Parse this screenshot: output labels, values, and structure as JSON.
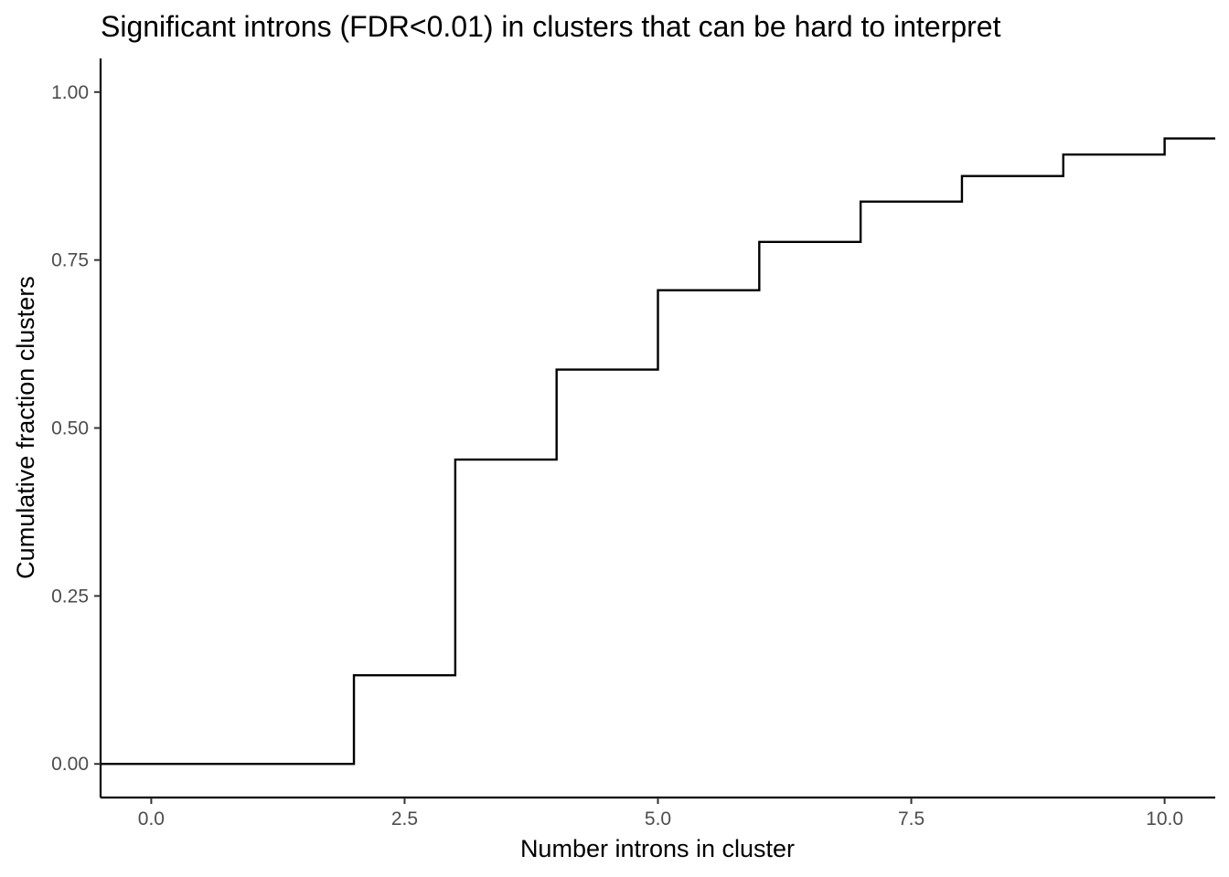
{
  "chart_data": {
    "type": "line",
    "subtype": "step-ecdf",
    "title": "Significant introns (FDR<0.01) in clusters that can be hard to interpret",
    "xlabel": "Number introns in cluster",
    "ylabel": "Cumulative fraction clusters",
    "xlim": [
      -0.5,
      10.5
    ],
    "ylim": [
      -0.05,
      1.05
    ],
    "x_ticks": [
      0,
      2.5,
      5,
      7.5,
      10
    ],
    "x_tick_labels": [
      "0.0",
      "2.5",
      "5.0",
      "7.5",
      "10.0"
    ],
    "y_ticks": [
      0,
      0.25,
      0.5,
      0.75,
      1
    ],
    "y_tick_labels": [
      "0.00",
      "0.25",
      "0.50",
      "0.75",
      "1.00"
    ],
    "grid": false,
    "legend": "none",
    "line_color": "#000000",
    "series": [
      {
        "points": [
          {
            "x": -0.5,
            "y": 0.0
          },
          {
            "x": 2,
            "y": 0.132
          },
          {
            "x": 3,
            "y": 0.453
          },
          {
            "x": 4,
            "y": 0.587
          },
          {
            "x": 5,
            "y": 0.705
          },
          {
            "x": 6,
            "y": 0.777
          },
          {
            "x": 7,
            "y": 0.837
          },
          {
            "x": 8,
            "y": 0.875
          },
          {
            "x": 9,
            "y": 0.907
          },
          {
            "x": 10,
            "y": 0.931
          },
          {
            "x": 10.5,
            "y": 0.931
          }
        ]
      }
    ]
  }
}
